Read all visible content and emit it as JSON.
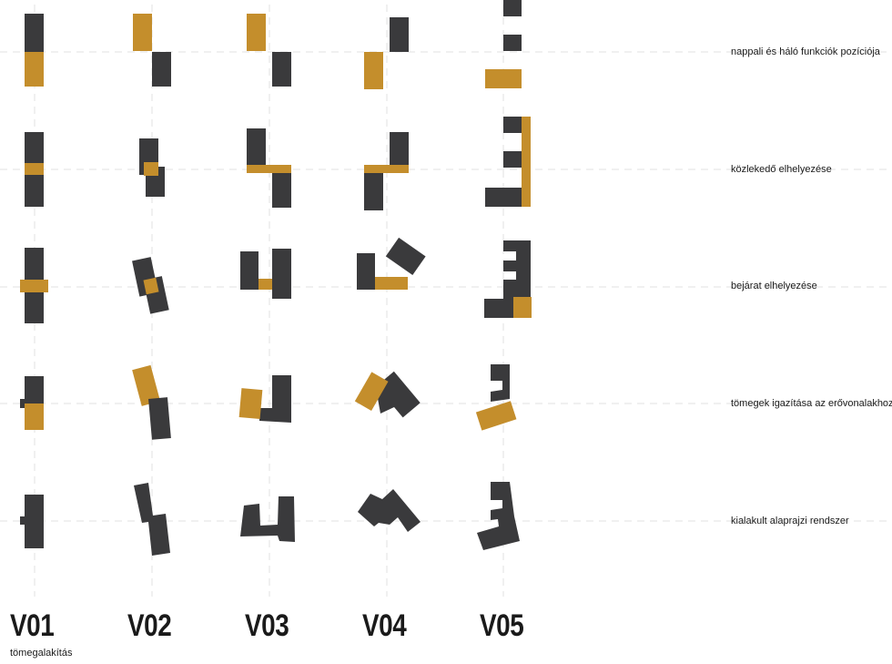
{
  "colors": {
    "dark": "#3a3a3c",
    "accent": "#c48e2c",
    "guide": "#e2e2e2"
  },
  "rows": [
    {
      "label": "nappali és háló funkciók pozíciója"
    },
    {
      "label": "közlekedő elhelyezése"
    },
    {
      "label": "bejárat elhelyezése"
    },
    {
      "label": "tömegek igazítása az erővonalakhoz"
    },
    {
      "label": "kialakult alaprajzi rendszer"
    }
  ],
  "columns": [
    {
      "label": "V01"
    },
    {
      "label": "V02"
    },
    {
      "label": "V03"
    },
    {
      "label": "V04"
    },
    {
      "label": "V05"
    }
  ],
  "subtitle": "tömegalakítás"
}
